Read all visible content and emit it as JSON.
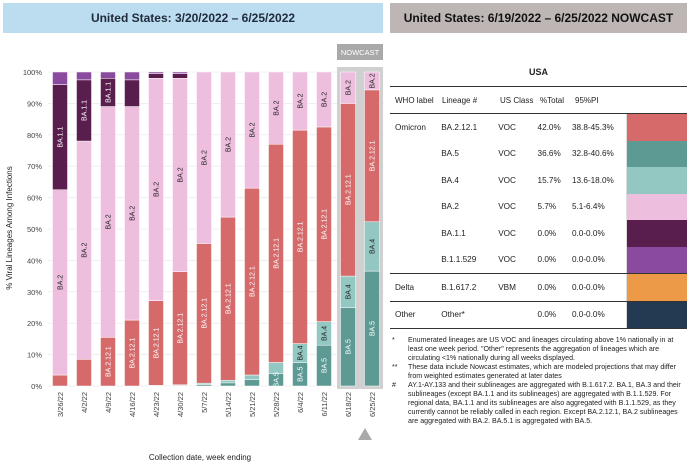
{
  "header": {
    "left_title": "United States: 3/20/2022 – 6/25/2022",
    "right_title": "United States: 6/19/2022 – 6/25/2022 NOWCAST",
    "nowcast_tab": "NOWCAST"
  },
  "chart_data": {
    "type": "bar",
    "stacked": true,
    "xlabel": "Collection date, week ending",
    "ylabel": "% Viral Lineages Among Infections",
    "ylim": [
      0,
      100
    ],
    "yticks": [
      "0%",
      "10%",
      "20%",
      "30%",
      "40%",
      "50%",
      "60%",
      "70%",
      "80%",
      "90%",
      "100%"
    ],
    "categories": [
      "3/26/22",
      "4/2/22",
      "4/9/22",
      "4/16/22",
      "4/23/22",
      "4/30/22",
      "5/7/22",
      "5/14/22",
      "5/21/22",
      "5/28/22",
      "6/4/22",
      "6/11/22",
      "6/18/22",
      "6/25/22"
    ],
    "nowcast_categories": [
      "6/18/22",
      "6/25/22"
    ],
    "series": [
      {
        "name": "BA.5",
        "color": "#5d9a94",
        "values": [
          0,
          0,
          0,
          0,
          0.1,
          0.2,
          0.5,
          1,
          2,
          4,
          7.5,
          13,
          25,
          36.6
        ]
      },
      {
        "name": "BA.4",
        "color": "#93c7c1",
        "values": [
          0,
          0,
          0,
          0,
          0.1,
          0.2,
          0.4,
          0.8,
          1.5,
          3.5,
          6,
          7.5,
          10,
          15.7
        ]
      },
      {
        "name": "BA.2.12.1",
        "color": "#d66a6a",
        "values": [
          3.5,
          8.5,
          15.5,
          21,
          27,
          36,
          44.5,
          52,
          59.5,
          69.5,
          68,
          62,
          55,
          42
        ]
      },
      {
        "name": "BA.2",
        "color": "#edbede",
        "values": [
          59,
          69.5,
          73.5,
          68,
          70.8,
          61.6,
          54.6,
          46.2,
          37,
          23,
          18.5,
          17.5,
          10,
          5.7
        ]
      },
      {
        "name": "BA.1.1",
        "color": "#5a1e4e",
        "values": [
          33.5,
          19.5,
          9,
          8.5,
          1.5,
          1.5,
          0,
          0,
          0,
          0,
          0,
          0,
          0,
          0
        ]
      },
      {
        "name": "B.1.1.529",
        "color": "#8a4a9e",
        "values": [
          4,
          2.5,
          2,
          2.5,
          0.5,
          0.5,
          0,
          0,
          0,
          0,
          0,
          0,
          0,
          0
        ]
      }
    ],
    "bar_labels": [
      {
        "cat": 0,
        "series": "BA.2",
        "text": "BA.2"
      },
      {
        "cat": 0,
        "series": "BA.1.1",
        "text": "BA.1.1"
      },
      {
        "cat": 1,
        "series": "BA.2",
        "text": "BA.2"
      },
      {
        "cat": 1,
        "series": "BA.1.1",
        "text": "BA.1.1"
      },
      {
        "cat": 2,
        "series": "BA.2.12.1",
        "text": "BA.2.12.1"
      },
      {
        "cat": 2,
        "series": "BA.2",
        "text": "BA.2"
      },
      {
        "cat": 2,
        "series": "BA.1.1",
        "text": "BA.1.1"
      },
      {
        "cat": 3,
        "series": "BA.2.12.1",
        "text": "BA.2.12.1"
      },
      {
        "cat": 3,
        "series": "BA.2",
        "text": "BA.2"
      },
      {
        "cat": 4,
        "series": "BA.2.12.1",
        "text": "BA.2.12.1"
      },
      {
        "cat": 4,
        "series": "BA.2",
        "text": "BA.2"
      },
      {
        "cat": 5,
        "series": "BA.2.12.1",
        "text": "BA.2.12.1"
      },
      {
        "cat": 5,
        "series": "BA.2",
        "text": "BA.2"
      },
      {
        "cat": 6,
        "series": "BA.2.12.1",
        "text": "BA.2.12.1"
      },
      {
        "cat": 6,
        "series": "BA.2",
        "text": "BA.2"
      },
      {
        "cat": 7,
        "series": "BA.2.12.1",
        "text": "BA.2.12.1"
      },
      {
        "cat": 7,
        "series": "BA.2",
        "text": "BA.2"
      },
      {
        "cat": 8,
        "series": "BA.2.12.1",
        "text": "BA.2.12.1"
      },
      {
        "cat": 8,
        "series": "BA.2",
        "text": "BA.2"
      },
      {
        "cat": 9,
        "series": "BA.5",
        "text": "BA.5"
      },
      {
        "cat": 9,
        "series": "BA.2.12.1",
        "text": "BA.2.12.1"
      },
      {
        "cat": 9,
        "series": "BA.2",
        "text": "BA.2"
      },
      {
        "cat": 10,
        "series": "BA.5",
        "text": "BA.5"
      },
      {
        "cat": 10,
        "series": "BA.4",
        "text": "BA.4"
      },
      {
        "cat": 10,
        "series": "BA.2.12.1",
        "text": "BA.2.12.1"
      },
      {
        "cat": 10,
        "series": "BA.2",
        "text": "BA.2"
      },
      {
        "cat": 11,
        "series": "BA.5",
        "text": "BA.5"
      },
      {
        "cat": 11,
        "series": "BA.4",
        "text": "BA.4"
      },
      {
        "cat": 11,
        "series": "BA.2.12.1",
        "text": "BA.2.12.1"
      },
      {
        "cat": 11,
        "series": "BA.2",
        "text": "BA.2"
      },
      {
        "cat": 12,
        "series": "BA.5",
        "text": "BA.5"
      },
      {
        "cat": 12,
        "series": "BA.4",
        "text": "BA.4"
      },
      {
        "cat": 12,
        "series": "BA.2.12.1",
        "text": "BA.2.12.1"
      },
      {
        "cat": 12,
        "series": "BA.2",
        "text": "BA.2"
      },
      {
        "cat": 13,
        "series": "BA.5",
        "text": "BA.5"
      },
      {
        "cat": 13,
        "series": "BA.4",
        "text": "BA.4"
      },
      {
        "cat": 13,
        "series": "BA.2.12.1",
        "text": "BA.2.12.1"
      },
      {
        "cat": 13,
        "series": "BA.2",
        "text": "BA.2"
      }
    ]
  },
  "table": {
    "title": "USA",
    "headers": {
      "who": "WHO label",
      "lineage": "Lineage #",
      "class": "US Class",
      "pct": "%Total",
      "pi": "95%PI"
    },
    "rows": [
      {
        "who": "Omicron",
        "lineage": "BA.2.12.1",
        "class": "VOC",
        "pct": "42.0%",
        "pi": "38.8-45.3%",
        "color": "#d66a6a"
      },
      {
        "who": "",
        "lineage": "BA.5",
        "class": "VOC",
        "pct": "36.6%",
        "pi": "32.8-40.6%",
        "color": "#5d9a94"
      },
      {
        "who": "",
        "lineage": "BA.4",
        "class": "VOC",
        "pct": "15.7%",
        "pi": "13.6-18.0%",
        "color": "#93c7c1"
      },
      {
        "who": "",
        "lineage": "BA.2",
        "class": "VOC",
        "pct": "5.7%",
        "pi": "5.1-6.4%",
        "color": "#edbede"
      },
      {
        "who": "",
        "lineage": "BA.1.1",
        "class": "VOC",
        "pct": "0.0%",
        "pi": "0.0-0.0%",
        "color": "#5a1e4e"
      },
      {
        "who": "",
        "lineage": "B.1.1.529",
        "class": "VOC",
        "pct": "0.0%",
        "pi": "0.0-0.0%",
        "color": "#8a4a9e"
      },
      {
        "who": "Delta",
        "lineage": "B.1.617.2",
        "class": "VBM",
        "pct": "0.0%",
        "pi": "0.0-0.0%",
        "color": "#ec9a47"
      },
      {
        "who": "Other",
        "lineage": "Other*",
        "class": "",
        "pct": "0.0%",
        "pi": "0.0-0.0%",
        "color": "#243a52"
      }
    ]
  },
  "notes": [
    {
      "mark": "*",
      "text": "Enumerated lineages are US VOC and lineages circulating above 1% nationally in at least one week period. \"Other\" represents the aggregation of lineages which are circulating <1% nationally during all weeks displayed."
    },
    {
      "mark": "**",
      "text": "These data include Nowcast estimates, which are modeled projections that may differ from weighted estimates generated at later dates"
    },
    {
      "mark": "#",
      "text": "AY.1-AY.133 and their sublineages are aggregated with B.1.617.2. BA.1, BA.3 and their sublineages (except BA.1.1 and its sublineages) are aggregated with B.1.1.529. For regional data, BA.1.1 and its sublineages are also aggregated with B.1.1.529, as they currently cannot be reliably called in each region. Except BA.2.12.1, BA.2 sublineages are aggregated with BA.2. BA.5.1 is aggregated with BA.5."
    }
  ]
}
